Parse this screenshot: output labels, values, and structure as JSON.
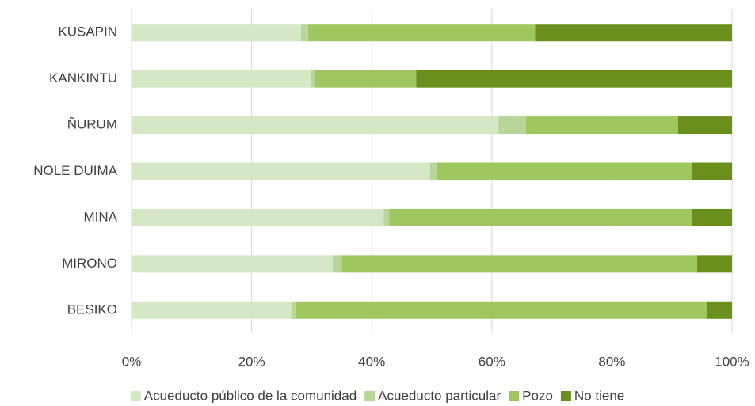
{
  "chart_data": {
    "type": "stacked-bar-horizontal",
    "categories": [
      "KUSAPIN",
      "KANKINTU",
      "ÑURUM",
      "NOLE DUIMA",
      "MINA",
      "MIRONO",
      "BESIKO"
    ],
    "series": [
      {
        "name": "Acueducto público de la comunidad",
        "color": "#d5e7c4",
        "values": [
          28.2,
          29.8,
          61.1,
          49.7,
          42.0,
          33.5,
          26.6
        ]
      },
      {
        "name": "Acueducto particular",
        "color": "#b8d69a",
        "values": [
          1.2,
          0.8,
          4.6,
          1.1,
          0.9,
          1.5,
          0.7
        ]
      },
      {
        "name": "Pozo",
        "color": "#9ec760",
        "values": [
          37.8,
          16.8,
          25.3,
          42.5,
          50.4,
          59.2,
          68.6
        ]
      },
      {
        "name": "No tiene",
        "color": "#6a8f1c",
        "values": [
          32.8,
          52.6,
          9.0,
          6.7,
          6.7,
          5.8,
          4.1
        ]
      }
    ],
    "xlim": [
      0,
      100
    ],
    "xticks": [
      {
        "value": 0,
        "label": "0%"
      },
      {
        "value": 20,
        "label": "20%"
      },
      {
        "value": 40,
        "label": "40%"
      },
      {
        "value": 60,
        "label": "60%"
      },
      {
        "value": 80,
        "label": "80%"
      },
      {
        "value": 100,
        "label": "100%"
      }
    ],
    "grid": true,
    "legend": "bottom"
  }
}
